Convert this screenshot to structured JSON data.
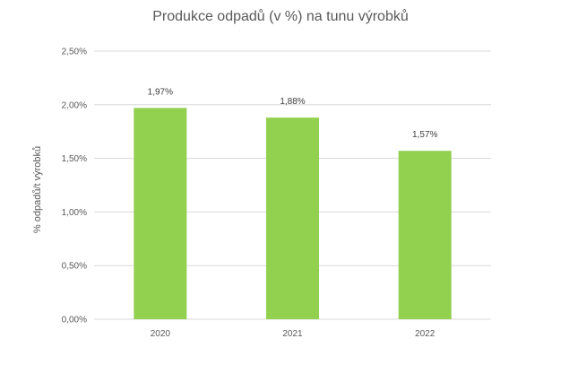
{
  "chart_data": {
    "type": "bar",
    "title": "Produkce odpadů (v %) na tunu výrobků",
    "ylabel": "% odpadů/t výrobků",
    "xlabel": "",
    "categories": [
      "2020",
      "2021",
      "2022"
    ],
    "values": [
      1.97,
      1.88,
      1.57
    ],
    "data_labels": [
      "1,97%",
      "1,88%",
      "1,57%"
    ],
    "ylim": [
      0,
      2.5
    ],
    "yticks": [
      0,
      0.5,
      1.0,
      1.5,
      2.0,
      2.5
    ],
    "ytick_labels": [
      "0,00%",
      "0,50%",
      "1,00%",
      "1,50%",
      "2,00%",
      "2,50%"
    ],
    "grid": true,
    "legend": "none",
    "bar_color": "#92d050",
    "grid_color": "#d9d9d9"
  }
}
